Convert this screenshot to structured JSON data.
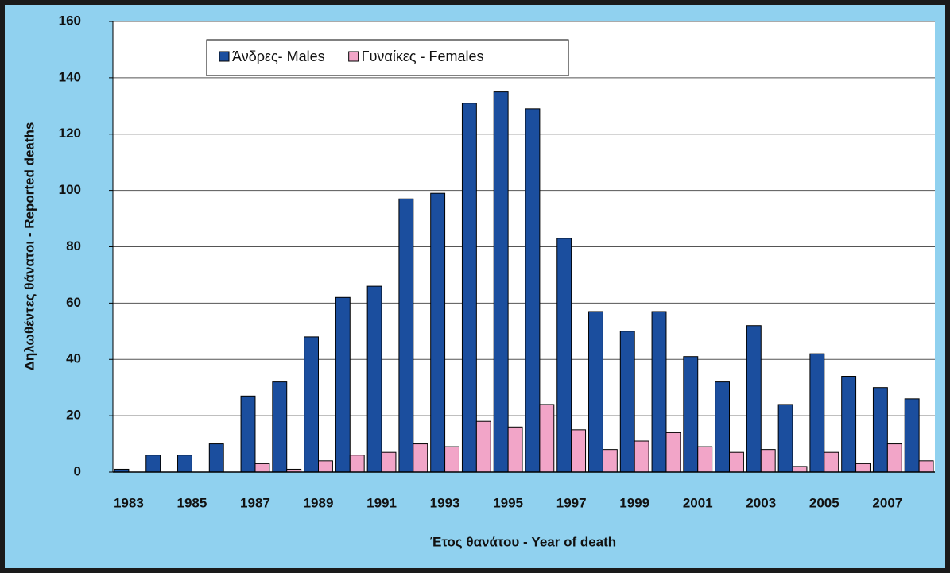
{
  "chart_data": {
    "type": "bar",
    "x_label": "Έτος θανάτου - Year of death",
    "y_label": "Δηλωθέντες θάνατοι - Reported deaths",
    "categories": [
      "1983",
      null,
      "1985",
      null,
      "1987",
      null,
      "1989",
      null,
      "1991",
      null,
      "1993",
      null,
      "1995",
      null,
      "1997",
      null,
      "1999",
      null,
      "2001",
      null,
      "2003",
      null,
      "2005",
      null,
      "2007",
      null
    ],
    "series": [
      {
        "name": "Άνδρες- Males",
        "color": "#1b4e9e",
        "values": [
          1,
          6,
          6,
          10,
          27,
          32,
          48,
          62,
          66,
          97,
          99,
          131,
          135,
          129,
          83,
          57,
          50,
          57,
          41,
          32,
          52,
          24,
          42,
          34,
          30,
          26
        ]
      },
      {
        "name": "Γυναίκες - Females",
        "color": "#f2a5c8",
        "values": [
          0,
          0,
          0,
          0,
          3,
          1,
          4,
          6,
          7,
          10,
          9,
          18,
          16,
          24,
          15,
          8,
          11,
          14,
          9,
          7,
          8,
          2,
          7,
          3,
          10,
          4
        ]
      }
    ],
    "ylim": [
      0,
      160
    ],
    "yticks": [
      0,
      20,
      40,
      60,
      80,
      100,
      120,
      140,
      160
    ],
    "grid": true,
    "legend": "top-left"
  }
}
